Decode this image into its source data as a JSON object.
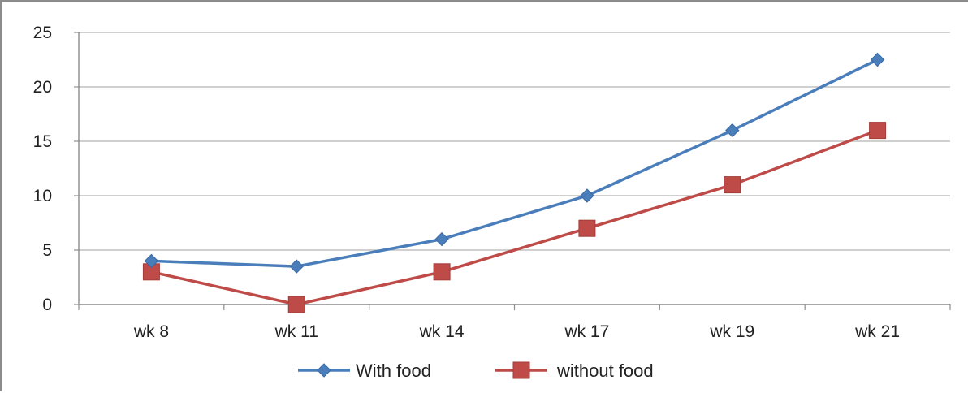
{
  "chart_data": {
    "type": "line",
    "title": "",
    "xlabel": "",
    "ylabel": "",
    "categories": [
      "wk 8",
      "wk 11",
      "wk 14",
      "wk 17",
      "wk 19",
      "wk 21"
    ],
    "series": [
      {
        "name": "With food",
        "values": [
          4,
          3.5,
          6,
          10,
          16,
          22.5
        ],
        "color": "#4a7ebb",
        "marker": "diamond"
      },
      {
        "name": "without food",
        "values": [
          3,
          0,
          3,
          7,
          11,
          16
        ],
        "color": "#be4b48",
        "marker": "square"
      }
    ],
    "ylim": [
      0,
      25
    ],
    "yticks": [
      "0",
      "5",
      "10",
      "15",
      "20",
      "25"
    ],
    "grid": "horizontal",
    "legend_position": "bottom"
  }
}
